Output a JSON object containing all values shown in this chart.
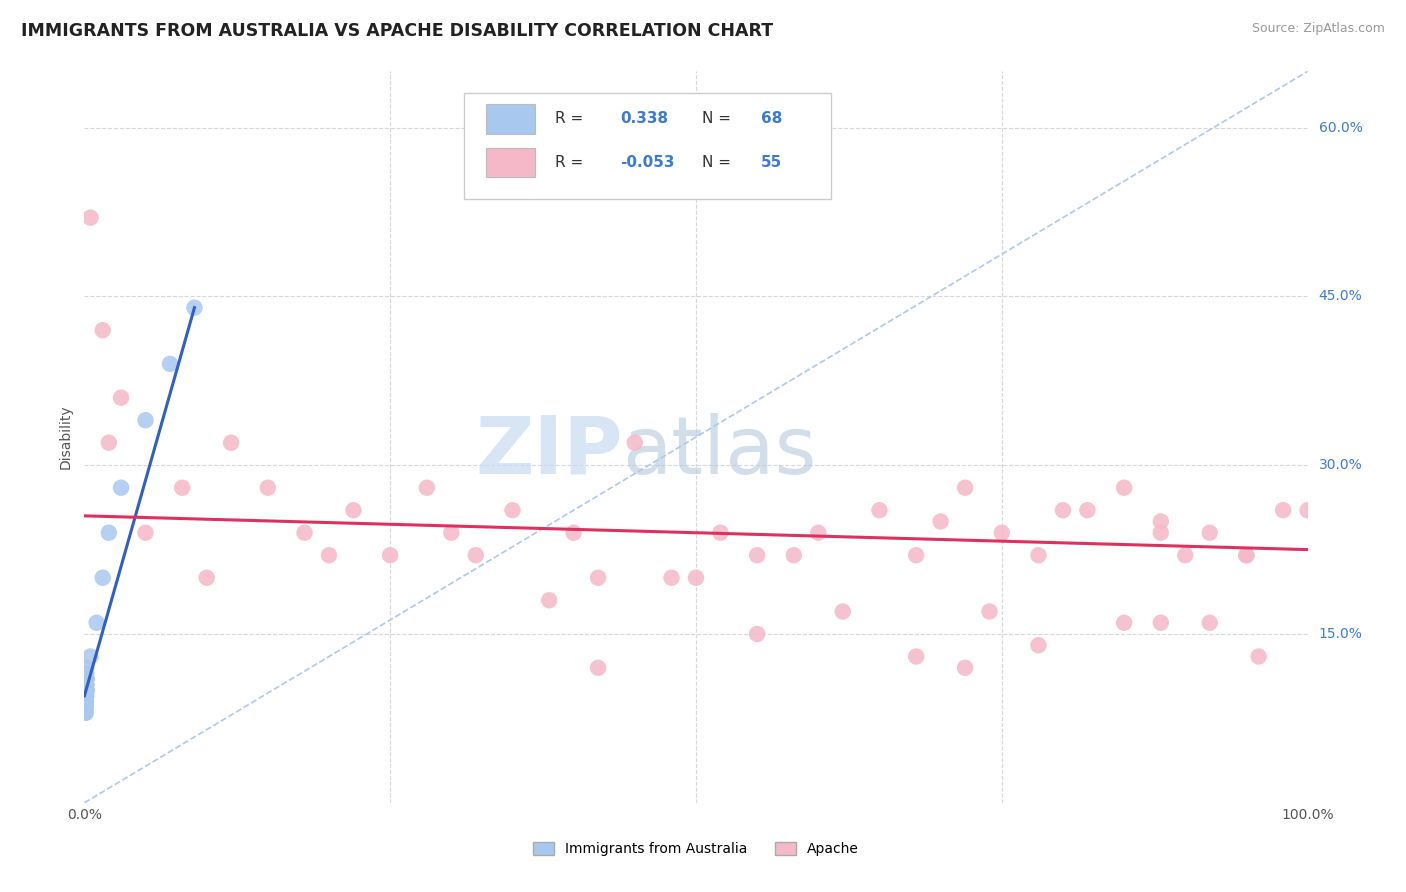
{
  "title": "IMMIGRANTS FROM AUSTRALIA VS APACHE DISABILITY CORRELATION CHART",
  "source": "Source: ZipAtlas.com",
  "ylabel": "Disability",
  "xlim": [
    0.0,
    100.0
  ],
  "ylim": [
    0.0,
    65.0
  ],
  "blue_color": "#a8c8f0",
  "pink_color": "#f5b8c8",
  "blue_line_color": "#3060c0",
  "pink_line_color": "#e03060",
  "dash_line_color": "#b0c8e8",
  "watermark_ZIP": "ZIP",
  "watermark_atlas": "atlas",
  "background_color": "#ffffff",
  "grid_color": "#d8d8d8",
  "blue_scatter_x": [
    0.1,
    0.15,
    0.12,
    0.18,
    0.2,
    0.1,
    0.13,
    0.11,
    0.14,
    0.16,
    0.1,
    0.12,
    0.11,
    0.13,
    0.15,
    0.1,
    0.12,
    0.14,
    0.11,
    0.13,
    0.1,
    0.11,
    0.12,
    0.13,
    0.1,
    0.14,
    0.11,
    0.12,
    0.1,
    0.13,
    0.1,
    0.11,
    0.12,
    0.1,
    0.13,
    0.15,
    0.11,
    0.12,
    0.1,
    0.14,
    0.1,
    0.11,
    0.12,
    0.13,
    0.1,
    0.15,
    0.11,
    0.12,
    0.1,
    0.13,
    0.14,
    0.1,
    0.11,
    0.12,
    0.1,
    0.13,
    0.15,
    0.1,
    0.12,
    0.11,
    0.5,
    1.0,
    1.5,
    2.0,
    3.0,
    5.0,
    7.0,
    9.0
  ],
  "blue_scatter_y": [
    10.0,
    9.5,
    10.5,
    11.0,
    10.0,
    9.0,
    10.0,
    9.5,
    10.5,
    11.0,
    8.5,
    9.0,
    10.0,
    9.5,
    10.0,
    8.0,
    9.0,
    10.5,
    9.0,
    10.0,
    11.0,
    10.0,
    9.5,
    10.5,
    9.0,
    11.0,
    10.0,
    9.5,
    10.0,
    10.5,
    9.0,
    10.0,
    10.5,
    9.5,
    10.0,
    11.5,
    9.0,
    10.0,
    9.5,
    10.5,
    8.5,
    9.0,
    10.0,
    10.5,
    9.0,
    11.0,
    9.5,
    10.0,
    9.0,
    10.5,
    11.0,
    8.5,
    9.5,
    10.0,
    8.0,
    10.5,
    12.0,
    9.0,
    10.0,
    9.5,
    13.0,
    16.0,
    20.0,
    24.0,
    28.0,
    34.0,
    39.0,
    44.0
  ],
  "pink_scatter_x": [
    0.5,
    1.5,
    3.0,
    8.0,
    12.0,
    15.0,
    18.0,
    22.0,
    25.0,
    28.0,
    32.0,
    35.0,
    40.0,
    45.0,
    48.0,
    52.0,
    55.0,
    60.0,
    65.0,
    68.0,
    72.0,
    75.0,
    78.0,
    82.0,
    85.0,
    88.0,
    90.0,
    92.0,
    95.0,
    98.0,
    2.0,
    5.0,
    10.0,
    20.0,
    30.0,
    42.0,
    58.0,
    70.0,
    80.0,
    88.0,
    95.0,
    38.0,
    50.0,
    62.0,
    74.0,
    85.0,
    92.0,
    55.0,
    68.0,
    78.0,
    88.0,
    96.0,
    100.0,
    42.0,
    72.0
  ],
  "pink_scatter_y": [
    52.0,
    42.0,
    36.0,
    28.0,
    32.0,
    28.0,
    24.0,
    26.0,
    22.0,
    28.0,
    22.0,
    26.0,
    24.0,
    32.0,
    20.0,
    24.0,
    22.0,
    24.0,
    26.0,
    22.0,
    28.0,
    24.0,
    22.0,
    26.0,
    28.0,
    25.0,
    22.0,
    24.0,
    22.0,
    26.0,
    32.0,
    24.0,
    20.0,
    22.0,
    24.0,
    20.0,
    22.0,
    25.0,
    26.0,
    24.0,
    22.0,
    18.0,
    20.0,
    17.0,
    17.0,
    16.0,
    16.0,
    15.0,
    13.0,
    14.0,
    16.0,
    13.0,
    26.0,
    12.0,
    12.0
  ],
  "blue_trend_x0": 0.0,
  "blue_trend_y0": 9.5,
  "blue_trend_x1": 9.0,
  "blue_trend_y1": 44.0,
  "pink_trend_x0": 0.0,
  "pink_trend_y0": 25.5,
  "pink_trend_x1": 100.0,
  "pink_trend_y1": 22.5,
  "diag_x0": 0.0,
  "diag_y0": 0.0,
  "diag_x1": 100.0,
  "diag_y1": 65.0
}
